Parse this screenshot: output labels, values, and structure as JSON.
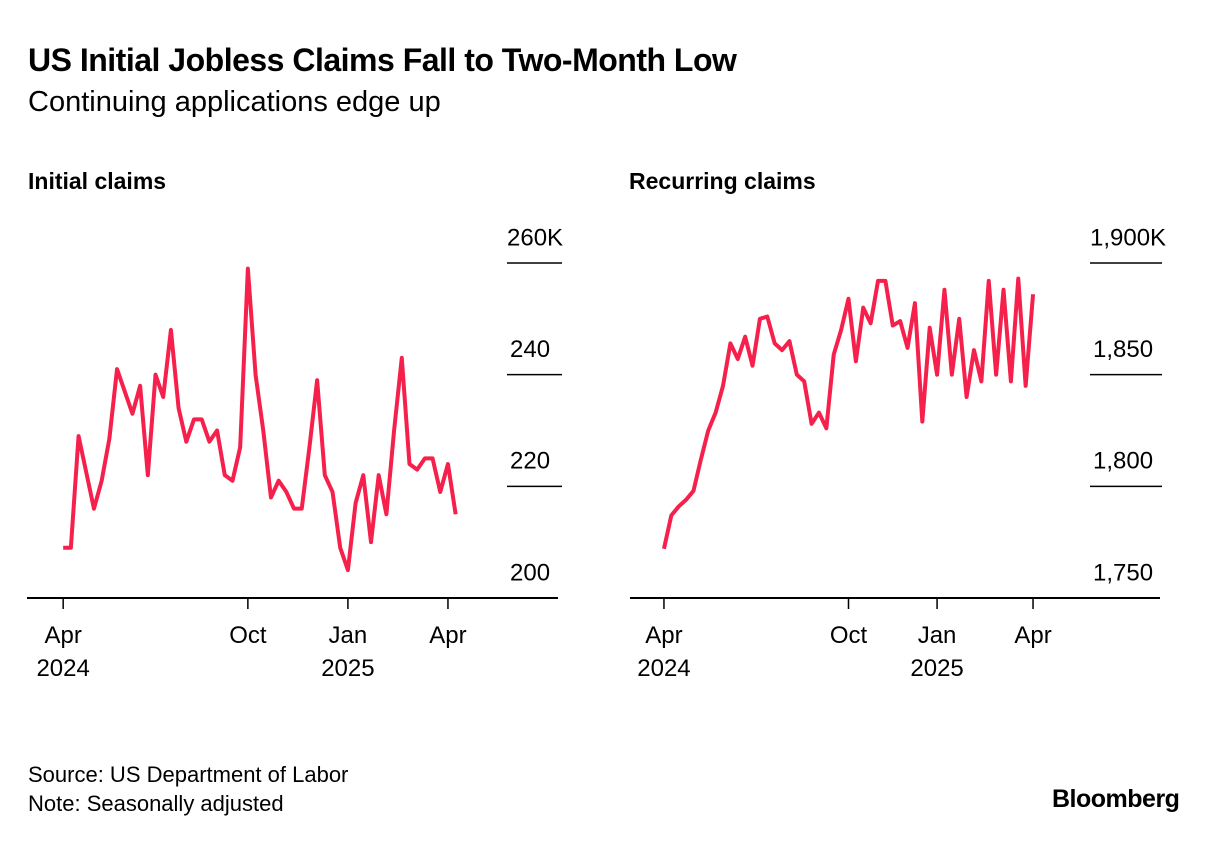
{
  "title": "US Initial Jobless Claims Fall to Two-Month Low",
  "subtitle": "Continuing applications edge up",
  "source": "Source: US Department of Labor",
  "note": "Note: Seasonally adjusted",
  "brand": "Bloomberg",
  "chart_data": [
    {
      "type": "line",
      "title": "Initial claims",
      "color": "#f5204b",
      "x": [
        0,
        1,
        2,
        3,
        4,
        5,
        6,
        7,
        8,
        9,
        10,
        11,
        12,
        13,
        14,
        15,
        16,
        17,
        18,
        19,
        20,
        21,
        22,
        23,
        24,
        25,
        26,
        27,
        28,
        29,
        30,
        31,
        32,
        33,
        34,
        35,
        36,
        37,
        38,
        39,
        40,
        41,
        42,
        43,
        44,
        45,
        46,
        47,
        48,
        49,
        50,
        51
      ],
      "values": [
        209,
        209,
        229,
        222.5,
        216,
        221,
        228.5,
        241,
        237,
        233,
        238,
        222,
        240,
        236,
        248,
        234,
        228,
        232,
        232,
        228,
        230,
        222,
        221,
        227,
        259,
        240,
        230,
        218,
        221,
        219,
        216,
        216,
        227,
        239,
        222,
        219,
        209,
        205,
        217,
        222,
        210,
        222,
        215,
        230,
        243,
        224,
        223,
        225,
        225,
        219,
        224,
        215
      ],
      "xlim": [
        -4.7,
        64.3
      ],
      "xticks": [
        {
          "value": 0,
          "label": "Apr\n2024"
        },
        {
          "value": 24,
          "label": "Oct"
        },
        {
          "value": 37,
          "label": "Jan\n2025"
        },
        {
          "value": 50,
          "label": "Apr"
        }
      ],
      "ylim": [
        200,
        260
      ],
      "yticks": [
        200,
        220,
        240,
        {
          "value": 260,
          "label": "260K"
        }
      ]
    },
    {
      "type": "line",
      "title": "Recurring claims",
      "color": "#f5204b",
      "x": [
        0,
        1,
        2,
        3,
        4,
        5,
        6,
        7,
        8,
        9,
        10,
        11,
        12,
        13,
        14,
        15,
        16,
        17,
        18,
        19,
        20,
        21,
        22,
        23,
        24,
        25,
        26,
        27,
        28,
        29,
        30,
        31,
        32,
        33,
        34,
        35,
        36,
        37,
        38,
        39,
        40,
        41,
        42,
        43,
        44,
        45,
        46,
        47,
        48,
        49,
        50
      ],
      "values": [
        1772,
        1787,
        1791,
        1794,
        1798,
        1812,
        1825,
        1833,
        1845,
        1864,
        1857,
        1867,
        1854,
        1875,
        1876,
        1864,
        1861,
        1865,
        1850,
        1847,
        1828,
        1833,
        1826,
        1859,
        1870,
        1884,
        1856,
        1880,
        1873,
        1892,
        1892,
        1872,
        1874,
        1862,
        1882,
        1829,
        1871,
        1850,
        1888,
        1850,
        1875,
        1840,
        1861,
        1847,
        1892,
        1850,
        1888,
        1847,
        1893,
        1845,
        1886
      ],
      "xlim": [
        -4.6,
        67.2
      ],
      "xticks": [
        {
          "value": 0,
          "label": "Apr\n2024"
        },
        {
          "value": 25,
          "label": "Oct"
        },
        {
          "value": 37,
          "label": "Jan\n2025"
        },
        {
          "value": 50,
          "label": "Apr"
        }
      ],
      "ylim": [
        1750,
        1900
      ],
      "yticks": [
        {
          "value": 1750,
          "label": "1,750"
        },
        {
          "value": 1800,
          "label": "1,800"
        },
        {
          "value": 1850,
          "label": "1,850"
        },
        {
          "value": 1900,
          "label": "1,900K"
        }
      ]
    }
  ]
}
